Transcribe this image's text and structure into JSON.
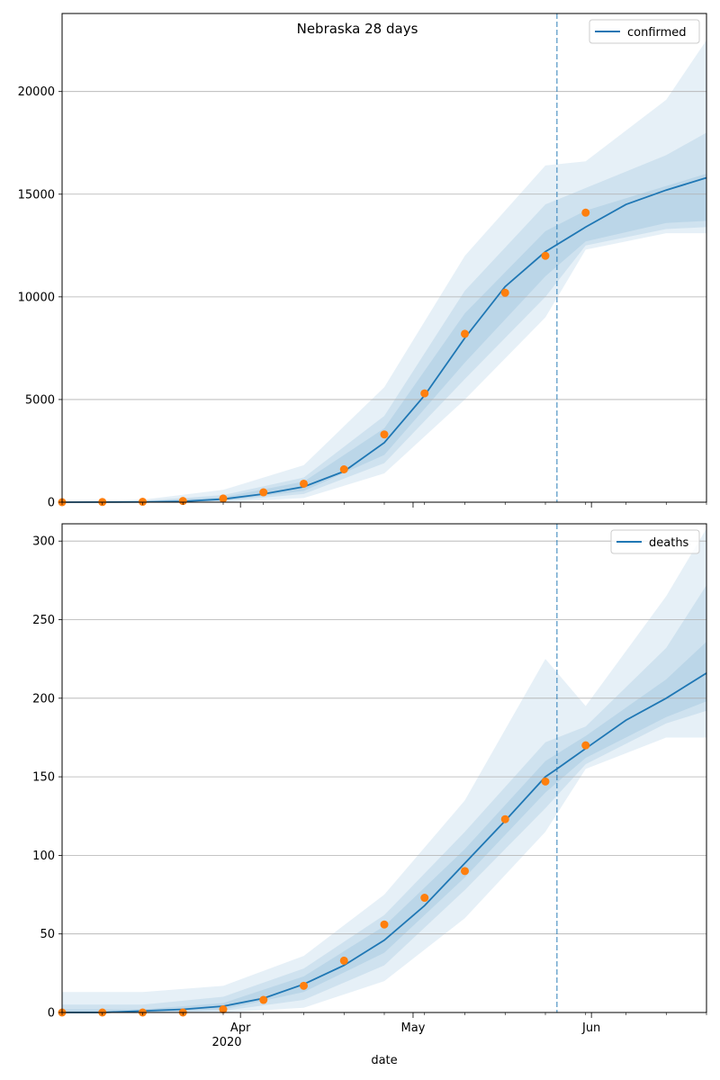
{
  "figure": {
    "title": "Nebraska 28 days",
    "xlabel": "date"
  },
  "colors": {
    "line": "#1f77b4",
    "observed": "#ff7f0e",
    "band": "#1f77b4",
    "grid": "#b0b0b0",
    "cutoff": "#1f77b4"
  },
  "chart_data": [
    {
      "type": "line",
      "panel": "top",
      "series": [
        {
          "name": "confirmed",
          "role": "fit",
          "x": [
            "2020-03-01",
            "2020-03-08",
            "2020-03-15",
            "2020-03-22",
            "2020-03-29",
            "2020-04-05",
            "2020-04-12",
            "2020-04-19",
            "2020-04-26",
            "2020-05-03",
            "2020-05-10",
            "2020-05-17",
            "2020-05-24",
            "2020-05-31",
            "2020-06-07",
            "2020-06-14",
            "2020-06-21"
          ],
          "y": [
            0,
            5,
            10,
            40,
            150,
            400,
            750,
            1500,
            2900,
            5200,
            8000,
            10500,
            12200,
            13400,
            14500,
            15200,
            15800
          ]
        },
        {
          "name": "",
          "role": "observed",
          "x": [
            "2020-03-01",
            "2020-03-08",
            "2020-03-15",
            "2020-03-22",
            "2020-03-29",
            "2020-04-05",
            "2020-04-12",
            "2020-04-19",
            "2020-04-26",
            "2020-05-03",
            "2020-05-10",
            "2020-05-17",
            "2020-05-24",
            "2020-05-31"
          ],
          "y": [
            0,
            10,
            20,
            60,
            180,
            480,
            900,
            1600,
            3300,
            5300,
            8200,
            10200,
            12000,
            14100
          ]
        }
      ],
      "bands": {
        "x": [
          "2020-03-01",
          "2020-03-15",
          "2020-03-29",
          "2020-04-12",
          "2020-04-26",
          "2020-05-10",
          "2020-05-24",
          "2020-05-31",
          "2020-06-14",
          "2020-06-21"
        ],
        "inner": [
          [
            0,
            0
          ],
          [
            0,
            30
          ],
          [
            80,
            250
          ],
          [
            550,
            1000
          ],
          [
            2300,
            3600
          ],
          [
            6800,
            9200
          ],
          [
            11000,
            13200
          ],
          [
            12700,
            14200
          ],
          [
            13600,
            15400
          ],
          [
            13700,
            16000
          ]
        ],
        "middle": [
          [
            0,
            0
          ],
          [
            0,
            60
          ],
          [
            50,
            350
          ],
          [
            400,
            1200
          ],
          [
            1900,
            4200
          ],
          [
            6000,
            10300
          ],
          [
            10000,
            14500
          ],
          [
            12500,
            15300
          ],
          [
            13300,
            16900
          ],
          [
            13400,
            18000
          ]
        ],
        "outer": [
          [
            0,
            0
          ],
          [
            0,
            120
          ],
          [
            0,
            600
          ],
          [
            200,
            1800
          ],
          [
            1400,
            5600
          ],
          [
            5000,
            12000
          ],
          [
            9000,
            16400
          ],
          [
            12300,
            16600
          ],
          [
            13100,
            19600
          ],
          [
            13100,
            22500
          ]
        ]
      },
      "cutoff_date": "2020-05-26",
      "xlim": [
        "2020-03-01",
        "2020-06-21"
      ],
      "ylim": [
        0,
        23800
      ],
      "yticks": [
        0,
        5000,
        10000,
        15000,
        20000
      ],
      "xticks": [
        "2020-04-01",
        "2020-05-01",
        "2020-06-01"
      ],
      "xticklabels": [
        "",
        "",
        ""
      ],
      "grid": "horizontal",
      "legend": "top-right"
    },
    {
      "type": "line",
      "panel": "bottom",
      "series": [
        {
          "name": "deaths",
          "role": "fit",
          "x": [
            "2020-03-01",
            "2020-03-08",
            "2020-03-15",
            "2020-03-22",
            "2020-03-29",
            "2020-04-05",
            "2020-04-12",
            "2020-04-19",
            "2020-04-26",
            "2020-05-03",
            "2020-05-10",
            "2020-05-17",
            "2020-05-24",
            "2020-05-26",
            "2020-05-31",
            "2020-06-07",
            "2020-06-14",
            "2020-06-21"
          ],
          "y": [
            0,
            0,
            1,
            2,
            4,
            9,
            18,
            30,
            46,
            68,
            95,
            122,
            150,
            155,
            168,
            186,
            200,
            216
          ]
        },
        {
          "name": "",
          "role": "observed",
          "x": [
            "2020-03-01",
            "2020-03-08",
            "2020-03-15",
            "2020-03-22",
            "2020-03-29",
            "2020-04-05",
            "2020-04-12",
            "2020-04-19",
            "2020-04-26",
            "2020-05-03",
            "2020-05-10",
            "2020-05-17",
            "2020-05-24",
            "2020-05-31"
          ],
          "y": [
            0,
            0,
            0,
            0,
            2,
            8,
            17,
            33,
            56,
            73,
            90,
            123,
            147,
            170
          ]
        }
      ],
      "bands": {
        "x": [
          "2020-03-01",
          "2020-03-15",
          "2020-03-29",
          "2020-04-12",
          "2020-04-26",
          "2020-05-10",
          "2020-05-24",
          "2020-05-31",
          "2020-06-14",
          "2020-06-21"
        ],
        "inner": [
          [
            0,
            2
          ],
          [
            0,
            2
          ],
          [
            2,
            6
          ],
          [
            13,
            23
          ],
          [
            38,
            55
          ],
          [
            86,
            104
          ],
          [
            140,
            160
          ],
          [
            162,
            176
          ],
          [
            188,
            212
          ],
          [
            198,
            236
          ]
        ],
        "middle": [
          [
            0,
            5
          ],
          [
            0,
            5
          ],
          [
            1,
            10
          ],
          [
            8,
            28
          ],
          [
            30,
            62
          ],
          [
            78,
            115
          ],
          [
            130,
            172
          ],
          [
            158,
            182
          ],
          [
            184,
            232
          ],
          [
            192,
            272
          ]
        ],
        "outer": [
          [
            0,
            13
          ],
          [
            0,
            13
          ],
          [
            0,
            17
          ],
          [
            3,
            36
          ],
          [
            20,
            75
          ],
          [
            60,
            135
          ],
          [
            115,
            225
          ],
          [
            155,
            195
          ],
          [
            175,
            265
          ],
          [
            175,
            308
          ]
        ]
      },
      "cutoff_date": "2020-05-26",
      "xlim": [
        "2020-03-01",
        "2020-06-21"
      ],
      "ylim": [
        0,
        311
      ],
      "yticks": [
        0,
        50,
        100,
        150,
        200,
        250,
        300
      ],
      "xticks": [
        "2020-04-01",
        "2020-05-01",
        "2020-06-01"
      ],
      "xticklabels": [
        "Apr",
        "May",
        "Jun"
      ],
      "xsublabel": "2020",
      "grid": "horizontal",
      "legend": "top-right"
    }
  ]
}
